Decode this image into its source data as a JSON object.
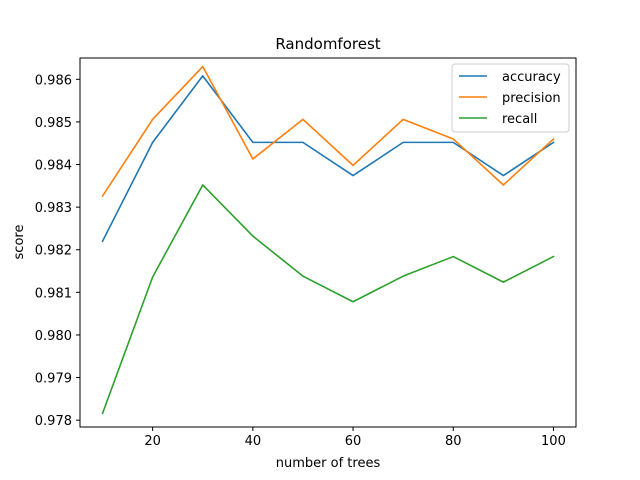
{
  "chart_data": {
    "type": "line",
    "title": "Randomforest",
    "xlabel": "number of trees",
    "ylabel": "score",
    "x": [
      10,
      20,
      30,
      40,
      50,
      60,
      70,
      80,
      90,
      100
    ],
    "xlim": [
      5.5,
      104.5
    ],
    "ylim": [
      0.97784,
      0.9865
    ],
    "xticks": [
      20,
      40,
      60,
      80,
      100
    ],
    "yticks": [
      0.978,
      0.979,
      0.98,
      0.981,
      0.982,
      0.983,
      0.984,
      0.985,
      0.986
    ],
    "xtick_labels": [
      "20",
      "40",
      "60",
      "80",
      "100"
    ],
    "ytick_labels": [
      "0.978",
      "0.979",
      "0.980",
      "0.981",
      "0.982",
      "0.983",
      "0.984",
      "0.985",
      "0.986"
    ],
    "grid": false,
    "legend_position": "top-right",
    "series": [
      {
        "name": "accuracy",
        "color": "#1f77b4",
        "values": [
          0.9822,
          0.98452,
          0.98608,
          0.98452,
          0.98452,
          0.98374,
          0.98452,
          0.98452,
          0.98374,
          0.98452
        ]
      },
      {
        "name": "precision",
        "color": "#ff7f0e",
        "values": [
          0.98326,
          0.98506,
          0.9863,
          0.98413,
          0.98506,
          0.98398,
          0.98506,
          0.9846,
          0.98352,
          0.9846
        ]
      },
      {
        "name": "recall",
        "color": "#2ca02c",
        "values": [
          0.97816,
          0.98136,
          0.98352,
          0.98232,
          0.98138,
          0.98078,
          0.98138,
          0.98184,
          0.98124,
          0.98184
        ]
      }
    ]
  }
}
